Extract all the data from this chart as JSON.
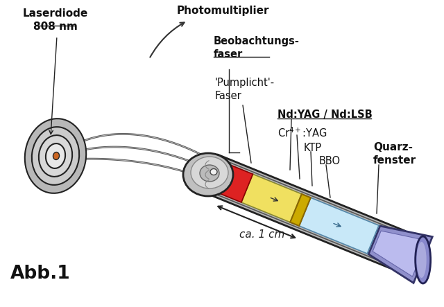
{
  "bg_color": "#ffffff",
  "labels": {
    "laserdiode": "Laserdiode\n808 nm",
    "photomultiplier": "Photomultiplier",
    "beobachtungsfaser": "Beobachtungs-\nfaser",
    "pumplicht": "'Pumplicht'-\nFaser",
    "nd_yag": "Nd:YAG / Nd:LSB",
    "cr_yag": "Cr$^{4+}$:YAG",
    "ktp": "KTP",
    "bbo": "BBO",
    "quarz": "Quarz-\nfenster",
    "scale": "ca. 1 cm",
    "abb": "Abb.1"
  },
  "colors": {
    "body_outer": "#c8c8c8",
    "body_inner": "#e8e8e8",
    "body_dark": "#888888",
    "red_crystal": "#dd2222",
    "yellow_crystal": "#f0e060",
    "light_blue_crystal": "#c8e8f8",
    "blue_tip": "#9090cc",
    "blue_tip_light": "#bbbbee",
    "outline": "#222222",
    "fiber_color": "#888888"
  }
}
